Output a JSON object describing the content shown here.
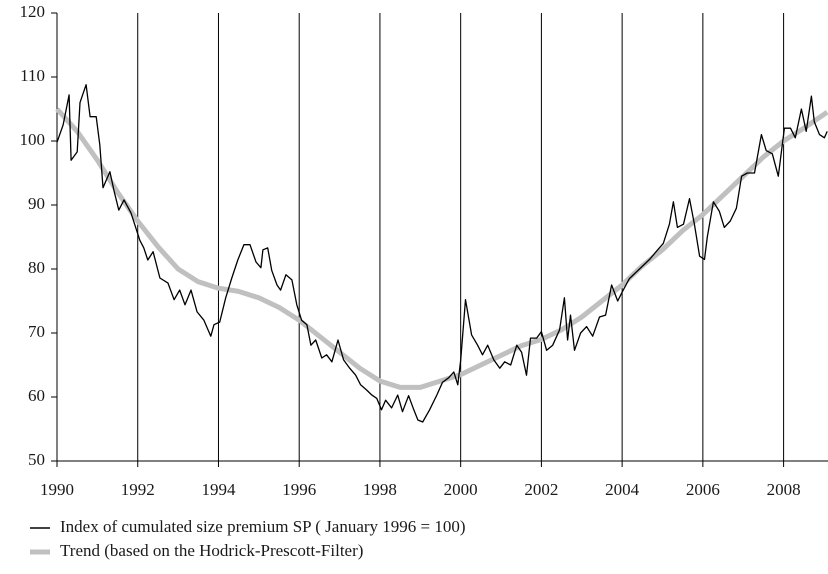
{
  "chart_data": {
    "type": "line",
    "xlim": [
      1990,
      2009.1
    ],
    "xticks": [
      1990,
      1992,
      1994,
      1996,
      1998,
      2000,
      2002,
      2004,
      2006,
      2008
    ],
    "ylim": [
      50,
      120
    ],
    "yticks": [
      50,
      60,
      70,
      80,
      90,
      100,
      110,
      120
    ],
    "grid": "x",
    "legend": "bottom",
    "series": [
      {
        "name": "Index of cumulated size premium SP ( January 1996 = 100)",
        "color": "#000000",
        "x": [
          1990.0,
          1990.15,
          1990.3,
          1990.35,
          1990.5,
          1990.57,
          1990.72,
          1990.82,
          1990.97,
          1991.06,
          1991.14,
          1991.31,
          1991.41,
          1991.53,
          1991.66,
          1991.83,
          1992.05,
          1992.15,
          1992.25,
          1992.38,
          1992.55,
          1992.75,
          1992.9,
          1993.04,
          1993.17,
          1993.32,
          1993.47,
          1993.64,
          1993.81,
          1993.89,
          1994.03,
          1994.18,
          1994.33,
          1994.48,
          1994.63,
          1994.78,
          1994.93,
          1995.05,
          1995.1,
          1995.22,
          1995.32,
          1995.45,
          1995.54,
          1995.67,
          1995.82,
          1995.94,
          1996.06,
          1996.19,
          1996.29,
          1996.41,
          1996.56,
          1996.68,
          1996.81,
          1996.96,
          1997.1,
          1997.25,
          1997.4,
          1997.52,
          1997.67,
          1997.8,
          1997.92,
          1998.04,
          1998.14,
          1998.29,
          1998.44,
          1998.56,
          1998.71,
          1998.84,
          1998.94,
          1999.06,
          1999.23,
          1999.41,
          1999.55,
          1999.7,
          1999.83,
          1999.93,
          2000.0,
          2000.12,
          2000.27,
          2000.42,
          2000.54,
          2000.67,
          2000.82,
          2000.97,
          2001.09,
          2001.24,
          2001.39,
          2001.51,
          2001.63,
          2001.73,
          2001.88,
          2002.0,
          2002.13,
          2002.28,
          2002.45,
          2002.57,
          2002.65,
          2002.72,
          2002.82,
          2002.97,
          2003.12,
          2003.27,
          2003.44,
          2003.59,
          2003.74,
          2003.89,
          2004.01,
          2004.18,
          2004.43,
          2004.68,
          2004.88,
          2005.02,
          2005.17,
          2005.27,
          2005.37,
          2005.52,
          2005.67,
          2005.79,
          2005.92,
          2006.04,
          2006.11,
          2006.26,
          2006.41,
          2006.53,
          2006.68,
          2006.83,
          2006.96,
          2007.1,
          2007.28,
          2007.45,
          2007.57,
          2007.72,
          2007.87,
          2008.02,
          2008.17,
          2008.29,
          2008.44,
          2008.56,
          2008.69,
          2008.76,
          2008.89,
          2009.01,
          2009.08
        ],
        "values": [
          99.8,
          102.5,
          107.2,
          97,
          98.3,
          106,
          108.8,
          103.8,
          103.8,
          99.4,
          92.7,
          95.2,
          92.3,
          89.2,
          90.8,
          88.8,
          84.5,
          83.3,
          81.4,
          82.7,
          78.6,
          77.8,
          75.2,
          76.7,
          74.4,
          76.7,
          73.3,
          72,
          69.5,
          71.3,
          71.7,
          75.5,
          78.6,
          81.4,
          83.8,
          83.8,
          81.1,
          80.2,
          83,
          83.3,
          79.8,
          77.5,
          76.7,
          79.1,
          78.3,
          74.4,
          72,
          71.3,
          68.1,
          68.9,
          66.1,
          66.6,
          65.5,
          68.9,
          65.8,
          64.5,
          63.4,
          61.9,
          61.1,
          60.3,
          59.8,
          58,
          59.5,
          58.3,
          60.3,
          57.7,
          60.2,
          58,
          56.4,
          56.1,
          58,
          60.3,
          62.3,
          63,
          63.9,
          61.9,
          65.8,
          75.2,
          69.7,
          68.1,
          66.6,
          68.1,
          65.8,
          64.5,
          65.5,
          65,
          68.1,
          67,
          63.4,
          69.2,
          69.2,
          70.2,
          67.3,
          68.1,
          70.5,
          75.5,
          68.9,
          72.8,
          67.3,
          70,
          71,
          69.5,
          72.5,
          72.8,
          77.5,
          75,
          76.5,
          78.5,
          80,
          81.5,
          83,
          84,
          87,
          90.5,
          86.5,
          87,
          91,
          87,
          82,
          81.5,
          85,
          90.5,
          89,
          86.5,
          87.5,
          89.5,
          94.5,
          95,
          95,
          101,
          98.5,
          98,
          94.5,
          102,
          102,
          100.5,
          105,
          101.5,
          107,
          103,
          101,
          100.5,
          101.5
        ]
      },
      {
        "name": "Trend (based on the Hodrick-Prescott-Filter)",
        "color": "#c0c0c0",
        "x": [
          1990,
          1990.5,
          1991,
          1991.5,
          1992,
          1992.5,
          1993,
          1993.5,
          1994,
          1994.5,
          1995,
          1995.5,
          1996,
          1996.5,
          1997,
          1997.5,
          1998,
          1998.5,
          1999,
          1999.5,
          2000,
          2000.5,
          2001,
          2001.5,
          2002,
          2002.5,
          2003,
          2003.5,
          2004,
          2004.5,
          2005,
          2005.5,
          2006,
          2006.5,
          2007,
          2007.5,
          2008,
          2008.5,
          2009.08
        ],
        "values": [
          105,
          101.5,
          97,
          92,
          87.5,
          83.5,
          80,
          78,
          77,
          76.5,
          75.5,
          74,
          72,
          69.5,
          67,
          64.5,
          62.5,
          61.5,
          61.5,
          62.5,
          63.5,
          65,
          66.5,
          68,
          69,
          70.5,
          72.5,
          75,
          77.5,
          80.5,
          83,
          86,
          88.5,
          91.5,
          94.5,
          97.5,
          100,
          102,
          104.5
        ]
      }
    ]
  }
}
